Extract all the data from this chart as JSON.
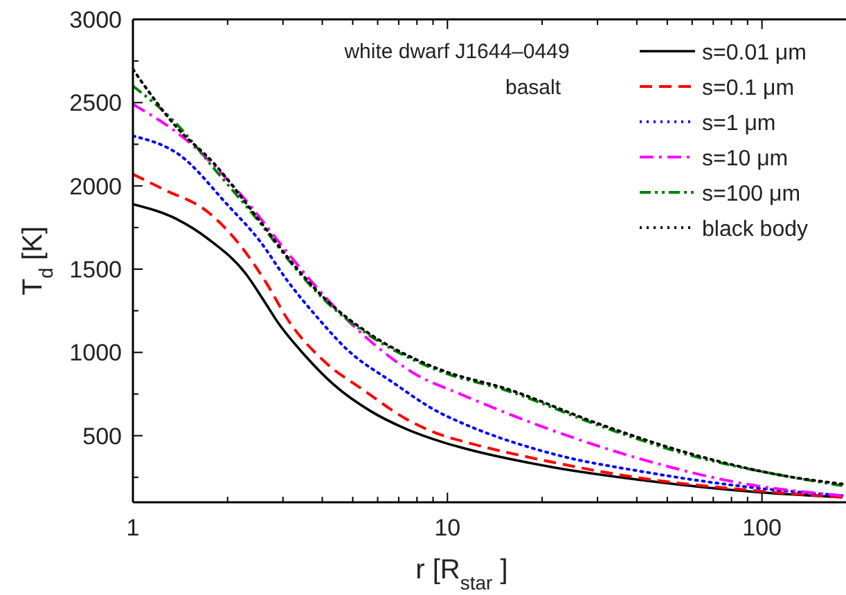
{
  "chart_data": {
    "type": "line",
    "xlabel": "r [R$_{star}$]",
    "ylabel": "T$_{d}$  [K]",
    "log": "x",
    "xlim": [
      1,
      185
    ],
    "xticks": [
      1,
      {
        "value": 2,
        "label": null
      },
      {
        "value": 3,
        "label": null
      },
      {
        "value": 4,
        "label": null
      },
      {
        "value": 5,
        "label": null
      },
      {
        "value": 6,
        "label": null
      },
      {
        "value": 7,
        "label": null
      },
      {
        "value": 8,
        "label": null
      },
      {
        "value": 9,
        "label": null
      },
      10,
      {
        "value": 20,
        "label": null
      },
      {
        "value": 30,
        "label": null
      },
      {
        "value": 40,
        "label": null
      },
      {
        "value": 50,
        "label": null
      },
      {
        "value": 60,
        "label": null
      },
      {
        "value": 70,
        "label": null
      },
      {
        "value": 80,
        "label": null
      },
      {
        "value": 90,
        "label": null
      },
      100
    ],
    "ylim": [
      100,
      3000
    ],
    "yticks": [
      {
        "value": 250,
        "label": null
      },
      500,
      {
        "value": 750,
        "label": null
      },
      1000,
      {
        "value": 1250,
        "label": null
      },
      1500,
      {
        "value": 1750,
        "label": null
      },
      2000,
      {
        "value": 2250,
        "label": null
      },
      2500,
      {
        "value": 2750,
        "label": null
      },
      3000
    ],
    "annotations": [
      "white dwarf J1644–0449",
      "basalt"
    ],
    "legend": "top right",
    "grid": false,
    "marker": "none",
    "series": [
      {
        "name": "s=0.01 μm",
        "color": "#000000",
        "line_style": "solid",
        "x": [
          1,
          1.38,
          1.74,
          2.29,
          2.61,
          2.89,
          3.53,
          4.33,
          5.67,
          7.4,
          9.7,
          11,
          21.7,
          42.8,
          98,
          180
        ],
        "values": [
          1890,
          1800,
          1680,
          1470,
          1310,
          1180,
          980,
          810,
          650,
          540,
          460,
          430,
          310,
          230,
          160,
          130
        ]
      },
      {
        "name": "s=0.1 μm",
        "color": "#ff0000",
        "line_style": "dashed",
        "x": [
          1,
          1.25,
          1.74,
          2.2,
          2.69,
          3.1,
          4.04,
          5.45,
          7.4,
          9.7,
          11,
          21.7,
          43,
          83,
          180
        ],
        "values": [
          2070,
          1980,
          1840,
          1640,
          1400,
          1200,
          950,
          770,
          600,
          500,
          470,
          340,
          240,
          180,
          130
        ]
      },
      {
        "name": "s=1 μm",
        "color": "#0000ff",
        "line_style": "dotted",
        "x": [
          1,
          1.42,
          1.99,
          2.53,
          3.1,
          3.9,
          4.78,
          6.7,
          9.4,
          11,
          21.7,
          43,
          83,
          180
        ],
        "values": [
          2300,
          2180,
          1890,
          1670,
          1430,
          1200,
          1020,
          820,
          640,
          580,
          390,
          280,
          200,
          140
        ]
      },
      {
        "name": "s=10 μm",
        "color": "#ff00ff",
        "line_style": "dashdot",
        "x": [
          1,
          1.47,
          2.2,
          3.1,
          3.8,
          5.67,
          7.9,
          11,
          21.7,
          43,
          83,
          180
        ],
        "values": [
          2490,
          2280,
          1950,
          1600,
          1400,
          1070,
          870,
          750,
          530,
          350,
          220,
          140
        ]
      },
      {
        "name": "s=100 μm",
        "color": "#008000",
        "line_style": "dashdotdot",
        "x": [
          1,
          1.38,
          1.8,
          2.53,
          3.3,
          4.04,
          5.67,
          7.9,
          9.7,
          15.5,
          30.4,
          59.7,
          117,
          180
        ],
        "values": [
          2600,
          2370,
          2110,
          1780,
          1500,
          1320,
          1100,
          950,
          880,
          770,
          560,
          380,
          260,
          200
        ]
      },
      {
        "name": "black body",
        "color": "#000000",
        "line_style": "dotted",
        "x": [
          1,
          1.38,
          1.8,
          2.53,
          3.3,
          4.04,
          5.67,
          7.9,
          9.7,
          15.5,
          30.4,
          59.7,
          117,
          180
        ],
        "values": [
          2700,
          2350,
          2140,
          1790,
          1510,
          1330,
          1110,
          960,
          890,
          780,
          570,
          390,
          260,
          210
        ]
      }
    ]
  }
}
